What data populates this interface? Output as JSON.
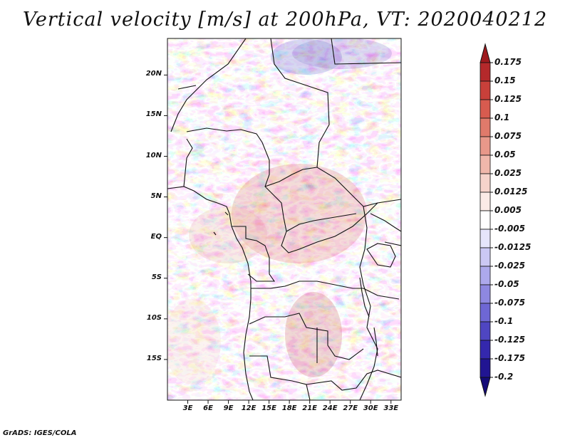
{
  "title": "Vertical velocity [m/s] at 200hPa, VT: 2020040212",
  "credit": "GrADS: IGES/COLA",
  "map": {
    "region": "Central Africa",
    "field": "Vertical velocity",
    "units": "m/s",
    "pressure_level": "200hPa",
    "valid_time": "2020040212",
    "lon_range": [
      0,
      34.5
    ],
    "lat_range": [
      -20,
      24.5
    ],
    "lat_ticks": [
      {
        "value": 20,
        "label": "20N"
      },
      {
        "value": 15,
        "label": "15N"
      },
      {
        "value": 10,
        "label": "10N"
      },
      {
        "value": 5,
        "label": "5N"
      },
      {
        "value": 0,
        "label": "EQ"
      },
      {
        "value": -5,
        "label": "5S"
      },
      {
        "value": -10,
        "label": "10S"
      },
      {
        "value": -15,
        "label": "15S"
      }
    ],
    "lon_ticks": [
      {
        "value": 3,
        "label": "3E"
      },
      {
        "value": 6,
        "label": "6E"
      },
      {
        "value": 9,
        "label": "9E"
      },
      {
        "value": 12,
        "label": "12E"
      },
      {
        "value": 15,
        "label": "15E"
      },
      {
        "value": 18,
        "label": "18E"
      },
      {
        "value": 21,
        "label": "21E"
      },
      {
        "value": 24,
        "label": "24E"
      },
      {
        "value": 27,
        "label": "27E"
      },
      {
        "value": 30,
        "label": "30E"
      },
      {
        "value": 33,
        "label": "33E"
      }
    ],
    "border_color": "#111111"
  },
  "colorbar": {
    "labels": [
      "0.175",
      "0.15",
      "0.125",
      "0.1",
      "0.075",
      "0.05",
      "0.025",
      "0.0125",
      "0.005",
      "-0.005",
      "-0.0125",
      "-0.025",
      "-0.05",
      "-0.075",
      "-0.1",
      "-0.125",
      "-0.175",
      "-0.2"
    ],
    "colors": [
      "#9e1a1e",
      "#b4292b",
      "#c8403a",
      "#d75b4f",
      "#e07a6b",
      "#e8988a",
      "#f0b7ab",
      "#f6d3cb",
      "#fbeae6",
      "#ffffff",
      "#e6e5fb",
      "#cbc8f4",
      "#ada9ec",
      "#8e88e1",
      "#6e67d4",
      "#4f46c2",
      "#3428ad",
      "#211592",
      "#140b78"
    ]
  }
}
